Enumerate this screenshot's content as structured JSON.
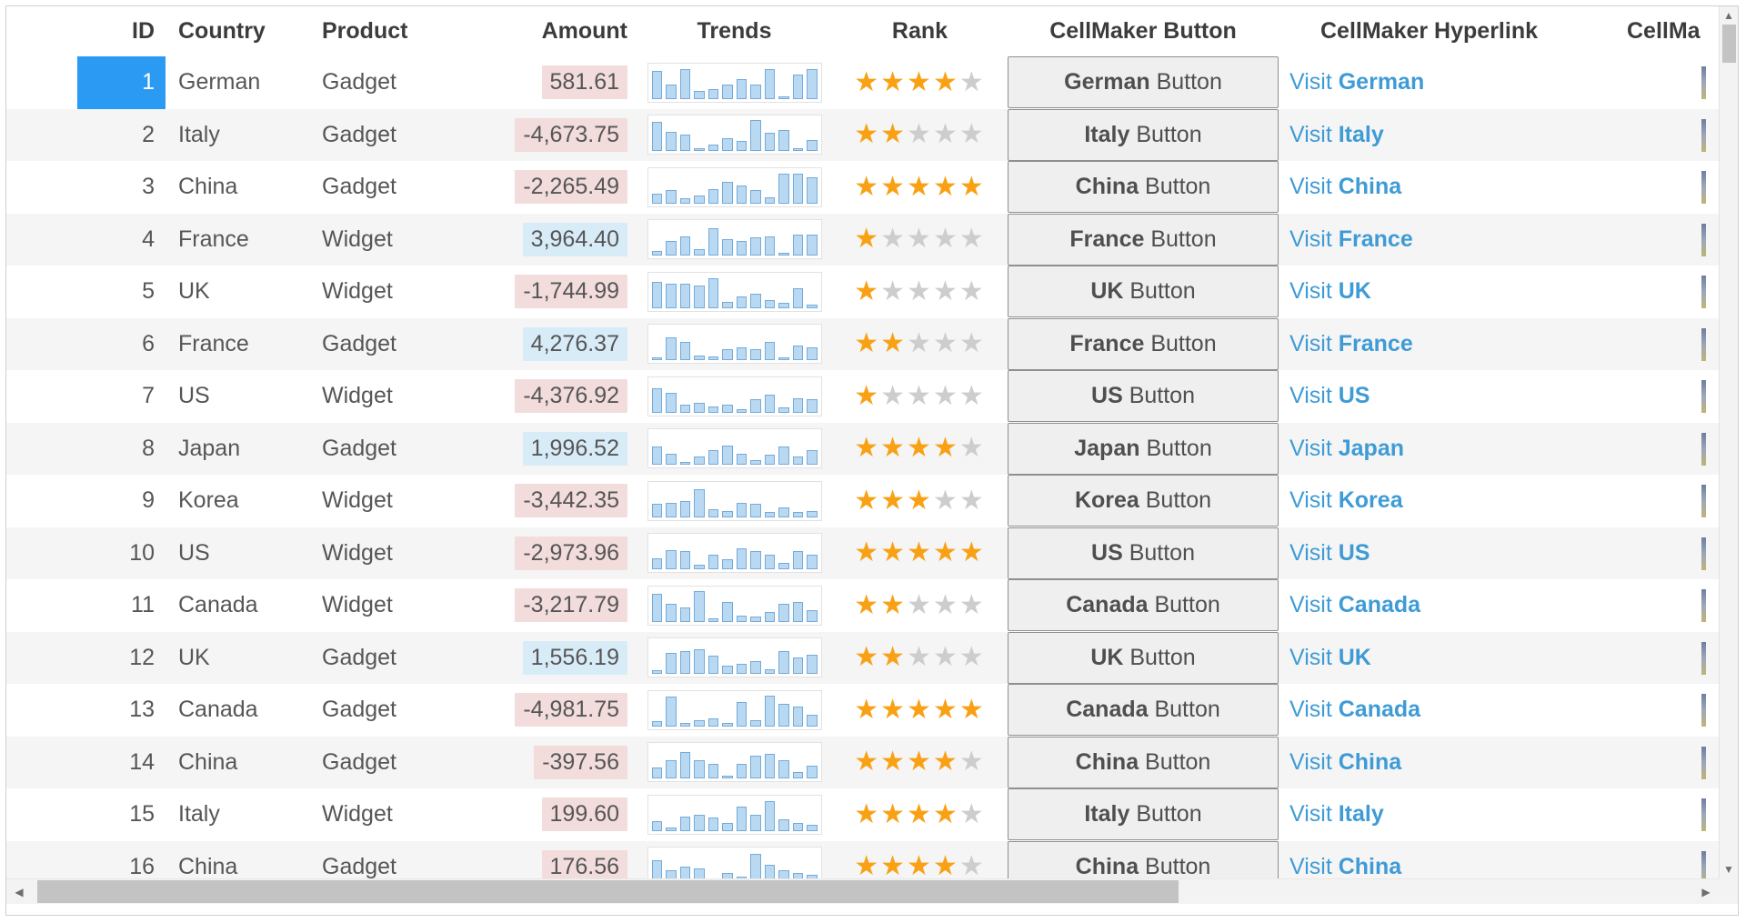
{
  "grid": {
    "columns": [
      {
        "key": "id",
        "label": "ID"
      },
      {
        "key": "country",
        "label": "Country"
      },
      {
        "key": "product",
        "label": "Product"
      },
      {
        "key": "amount",
        "label": "Amount"
      },
      {
        "key": "trends",
        "label": "Trends"
      },
      {
        "key": "rank",
        "label": "Rank"
      },
      {
        "key": "button",
        "label": "CellMaker Button"
      },
      {
        "key": "hyperlink",
        "label": "CellMaker Hyperlink"
      },
      {
        "key": "extra",
        "label": "CellMa"
      }
    ],
    "button_suffix": " Button",
    "link_prefix": "Visit ",
    "rank_max": 5,
    "rows": [
      {
        "id": 1,
        "country": "German",
        "product": "Gadget",
        "amount": "581.61",
        "amount_bg": "pink",
        "rank": 4,
        "selected": true,
        "trend": [
          85,
          45,
          90,
          25,
          30,
          45,
          60,
          45,
          90,
          5,
          75,
          90
        ]
      },
      {
        "id": 2,
        "country": "Italy",
        "product": "Gadget",
        "amount": "-4,673.75",
        "amount_bg": "pink",
        "rank": 2,
        "selected": false,
        "trend": [
          90,
          60,
          50,
          8,
          20,
          40,
          30,
          95,
          55,
          65,
          8,
          35
        ]
      },
      {
        "id": 3,
        "country": "China",
        "product": "Gadget",
        "amount": "-2,265.49",
        "amount_bg": "pink",
        "rank": 5,
        "selected": false,
        "trend": [
          30,
          40,
          15,
          25,
          45,
          65,
          55,
          40,
          20,
          90,
          90,
          80
        ]
      },
      {
        "id": 4,
        "country": "France",
        "product": "Widget",
        "amount": "3,964.40",
        "amount_bg": "blue",
        "rank": 1,
        "selected": false,
        "trend": [
          15,
          45,
          60,
          20,
          85,
          50,
          45,
          55,
          60,
          8,
          65,
          65
        ]
      },
      {
        "id": 5,
        "country": "UK",
        "product": "Widget",
        "amount": "-1,744.99",
        "amount_bg": "pink",
        "rank": 1,
        "selected": false,
        "trend": [
          80,
          75,
          75,
          70,
          90,
          20,
          35,
          45,
          25,
          15,
          60,
          10
        ]
      },
      {
        "id": 6,
        "country": "France",
        "product": "Gadget",
        "amount": "4,276.37",
        "amount_bg": "blue",
        "rank": 2,
        "selected": false,
        "trend": [
          10,
          70,
          55,
          15,
          12,
          35,
          40,
          35,
          55,
          8,
          45,
          40
        ]
      },
      {
        "id": 7,
        "country": "US",
        "product": "Widget",
        "amount": "-4,376.92",
        "amount_bg": "pink",
        "rank": 1,
        "selected": false,
        "trend": [
          75,
          60,
          25,
          30,
          20,
          25,
          10,
          40,
          55,
          15,
          45,
          40
        ]
      },
      {
        "id": 8,
        "country": "Japan",
        "product": "Gadget",
        "amount": "1,996.52",
        "amount_bg": "blue",
        "rank": 4,
        "selected": false,
        "trend": [
          55,
          35,
          10,
          25,
          45,
          60,
          35,
          15,
          30,
          55,
          25,
          45
        ]
      },
      {
        "id": 9,
        "country": "Korea",
        "product": "Widget",
        "amount": "-3,442.35",
        "amount_bg": "pink",
        "rank": 3,
        "selected": false,
        "trend": [
          40,
          45,
          50,
          85,
          25,
          20,
          45,
          40,
          15,
          30,
          15,
          20
        ]
      },
      {
        "id": 10,
        "country": "US",
        "product": "Widget",
        "amount": "-2,973.96",
        "amount_bg": "pink",
        "rank": 5,
        "selected": false,
        "trend": [
          35,
          60,
          55,
          15,
          45,
          30,
          65,
          55,
          45,
          20,
          55,
          45
        ]
      },
      {
        "id": 11,
        "country": "Canada",
        "product": "Widget",
        "amount": "-3,217.79",
        "amount_bg": "pink",
        "rank": 2,
        "selected": false,
        "trend": [
          85,
          55,
          45,
          95,
          10,
          60,
          20,
          15,
          30,
          55,
          60,
          35
        ]
      },
      {
        "id": 12,
        "country": "UK",
        "product": "Gadget",
        "amount": "1,556.19",
        "amount_bg": "blue",
        "rank": 2,
        "selected": false,
        "trend": [
          12,
          65,
          70,
          75,
          55,
          25,
          30,
          40,
          15,
          70,
          50,
          60
        ]
      },
      {
        "id": 13,
        "country": "Canada",
        "product": "Gadget",
        "amount": "-4,981.75",
        "amount_bg": "pink",
        "rank": 5,
        "selected": false,
        "trend": [
          15,
          90,
          10,
          20,
          25,
          10,
          75,
          20,
          95,
          70,
          60,
          35
        ]
      },
      {
        "id": 14,
        "country": "China",
        "product": "Gadget",
        "amount": "-397.56",
        "amount_bg": "pink",
        "rank": 4,
        "selected": false,
        "trend": [
          35,
          55,
          80,
          55,
          45,
          8,
          45,
          70,
          75,
          55,
          20,
          40
        ]
      },
      {
        "id": 15,
        "country": "Italy",
        "product": "Widget",
        "amount": "199.60",
        "amount_bg": "pink",
        "rank": 4,
        "selected": false,
        "trend": [
          30,
          10,
          45,
          50,
          40,
          25,
          75,
          50,
          90,
          35,
          25,
          20
        ]
      },
      {
        "id": 16,
        "country": "China",
        "product": "Gadget",
        "amount": "176.56",
        "amount_bg": "pink",
        "rank": 4,
        "selected": false,
        "trend": [
          70,
          40,
          50,
          45,
          8,
          30,
          20,
          90,
          55,
          40,
          30,
          25
        ]
      }
    ]
  },
  "icons": {
    "star": "★",
    "scroll_up": "▲",
    "scroll_down": "▼",
    "scroll_left": "◀",
    "scroll_right": "▶"
  },
  "colors": {
    "focused_cell": "#2b9af3",
    "amount_pink_bg": "#f2dcdc",
    "amount_blue_bg": "#d8ecf8",
    "star_filled": "#f9a115",
    "star_empty": "#cdcdcd",
    "link": "#3e9bd6",
    "spark_fill": "#b9d9f2",
    "spark_stroke": "#74abdb",
    "alt_row_bg": "#f5f5f5"
  }
}
